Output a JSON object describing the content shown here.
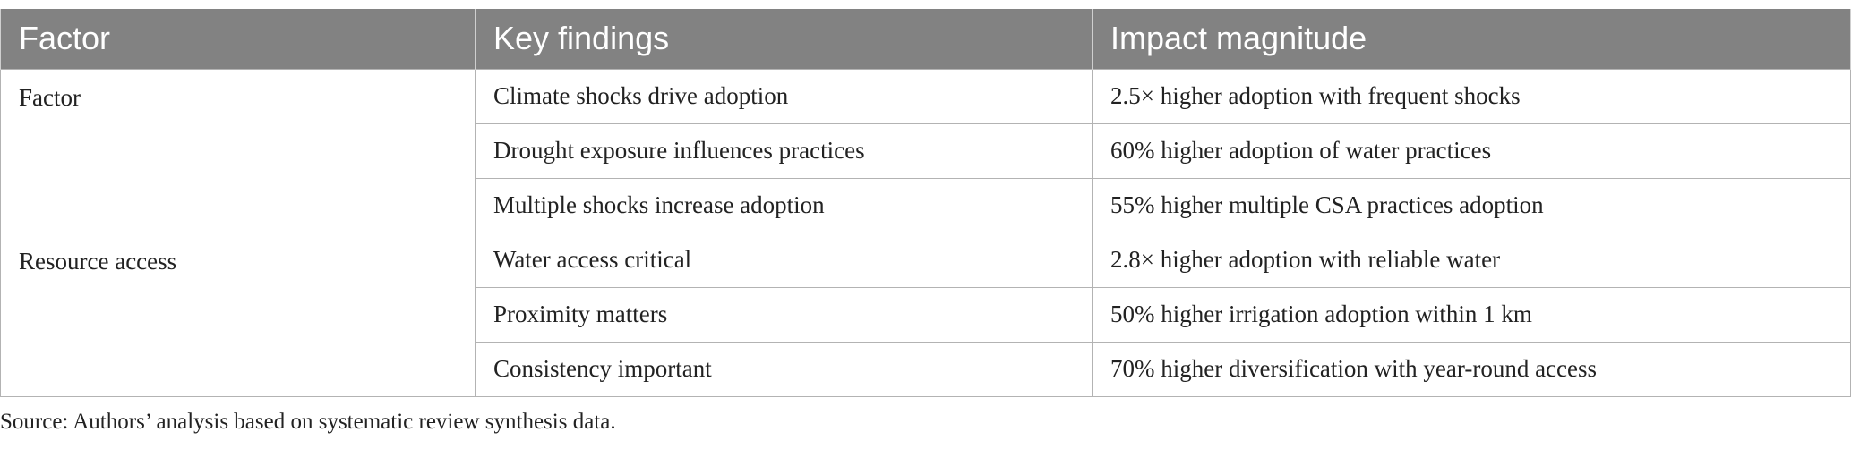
{
  "table": {
    "headers": [
      "Factor",
      "Key findings",
      "Impact magnitude"
    ],
    "groups": [
      {
        "factor": "Factor",
        "rows": [
          {
            "finding": "Climate shocks drive adoption",
            "impact": "2.5× higher adoption with frequent shocks"
          },
          {
            "finding": "Drought exposure influences practices",
            "impact": "60% higher adoption of water practices"
          },
          {
            "finding": "Multiple shocks increase adoption",
            "impact": "55% higher multiple CSA practices adoption"
          }
        ]
      },
      {
        "factor": "Resource access",
        "rows": [
          {
            "finding": "Water access critical",
            "impact": "2.8× higher adoption with reliable water"
          },
          {
            "finding": "Proximity matters",
            "impact": "50% higher irrigation adoption within 1 km"
          },
          {
            "finding": "Consistency important",
            "impact": "70% higher diversification with year-round access"
          }
        ]
      }
    ]
  },
  "source_note": "Source: Authors’ analysis based on systematic review synthesis data."
}
